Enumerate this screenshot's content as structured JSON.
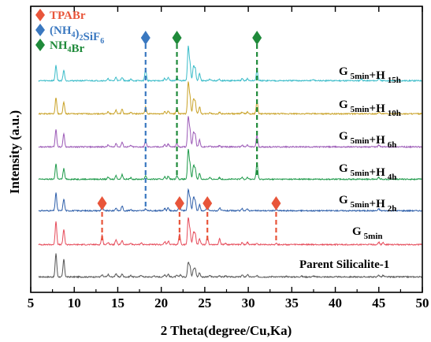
{
  "chart_data": {
    "type": "line",
    "xlabel": "2 Theta(degree/Cu,Ka)",
    "ylabel": "Intensity (a.u.)",
    "xlim": [
      5,
      50
    ],
    "x_ticks": [
      5,
      10,
      15,
      20,
      25,
      30,
      35,
      40,
      45,
      50
    ],
    "y_ticks_shown": false,
    "legend": {
      "placement": "top-left",
      "entries": [
        {
          "marker": "diamond",
          "color": "#e8553a",
          "label": "TPABr"
        },
        {
          "marker": "diamond",
          "color": "#3a78c0",
          "label_main": "(NH",
          "label_sub": "4",
          "label_tail": ")",
          "label_sub2": "2",
          "label_tail2": "SiF",
          "label_sub3": "6"
        },
        {
          "marker": "diamond",
          "color": "#1f8a3a",
          "label_main": "NH",
          "label_sub": "4",
          "label_tail": "Br"
        }
      ]
    },
    "series": [
      {
        "label_main": "Parent Silicalite-1",
        "label_sub": "",
        "label_plus": "",
        "label_sub2": "",
        "color": "#555555",
        "baseline": 0,
        "peaks": [
          [
            7.9,
            1.0
          ],
          [
            8.8,
            0.75
          ],
          [
            13.2,
            0.08
          ],
          [
            13.9,
            0.1
          ],
          [
            14.8,
            0.15
          ],
          [
            15.5,
            0.12
          ],
          [
            16.5,
            0.06
          ],
          [
            17.7,
            0.08
          ],
          [
            19.2,
            0.05
          ],
          [
            20.4,
            0.1
          ],
          [
            20.8,
            0.12
          ],
          [
            21.8,
            0.06
          ],
          [
            22.2,
            0.1
          ],
          [
            23.1,
            0.6
          ],
          [
            23.3,
            0.45
          ],
          [
            23.7,
            0.3
          ],
          [
            23.9,
            0.35
          ],
          [
            24.4,
            0.18
          ],
          [
            25.6,
            0.06
          ],
          [
            26.7,
            0.06
          ],
          [
            27.4,
            0.05
          ],
          [
            29.3,
            0.08
          ],
          [
            29.9,
            0.1
          ],
          [
            31.0,
            0.04
          ],
          [
            32.8,
            0.03
          ],
          [
            34.4,
            0.03
          ],
          [
            36.1,
            0.04
          ],
          [
            37.5,
            0.04
          ],
          [
            45.0,
            0.08
          ],
          [
            45.5,
            0.06
          ]
        ]
      },
      {
        "label_main": "G",
        "label_sub": "5min",
        "label_plus": "",
        "label_sub2": "",
        "color": "#e64b5a",
        "baseline": 1,
        "peaks": [
          [
            7.9,
            1.0
          ],
          [
            8.8,
            0.65
          ],
          [
            13.2,
            0.4
          ],
          [
            13.9,
            0.1
          ],
          [
            14.8,
            0.2
          ],
          [
            15.5,
            0.18
          ],
          [
            16.5,
            0.06
          ],
          [
            17.7,
            0.08
          ],
          [
            20.4,
            0.12
          ],
          [
            20.8,
            0.15
          ],
          [
            22.1,
            0.45
          ],
          [
            23.1,
            1.1
          ],
          [
            23.3,
            0.6
          ],
          [
            23.7,
            0.5
          ],
          [
            23.9,
            0.45
          ],
          [
            24.4,
            0.25
          ],
          [
            25.3,
            0.35
          ],
          [
            26.7,
            0.25
          ],
          [
            27.4,
            0.06
          ],
          [
            29.3,
            0.1
          ],
          [
            29.9,
            0.1
          ],
          [
            31.0,
            0.05
          ],
          [
            33.2,
            0.06
          ],
          [
            45.0,
            0.1
          ],
          [
            45.5,
            0.08
          ]
        ]
      },
      {
        "label_main": "G",
        "label_sub": "5min",
        "label_plus": "+H",
        "label_sub2": "2h",
        "color": "#2e5faa",
        "baseline": 2,
        "peaks": [
          [
            7.9,
            0.75
          ],
          [
            8.8,
            0.5
          ],
          [
            13.2,
            0.2
          ],
          [
            14.8,
            0.12
          ],
          [
            15.5,
            0.2
          ],
          [
            16.5,
            0.06
          ],
          [
            18.2,
            0.08
          ],
          [
            20.4,
            0.1
          ],
          [
            20.8,
            0.12
          ],
          [
            22.1,
            0.3
          ],
          [
            23.1,
            0.85
          ],
          [
            23.3,
            0.5
          ],
          [
            23.7,
            0.55
          ],
          [
            23.9,
            0.4
          ],
          [
            24.4,
            0.25
          ],
          [
            25.3,
            0.2
          ],
          [
            26.7,
            0.12
          ],
          [
            29.3,
            0.08
          ],
          [
            29.9,
            0.08
          ],
          [
            33.2,
            0.05
          ],
          [
            45.0,
            0.08
          ]
        ]
      },
      {
        "label_main": "G",
        "label_sub": "5min",
        "label_plus": "+H",
        "label_sub2": "4h",
        "color": "#1e9a4a",
        "baseline": 3,
        "peaks": [
          [
            7.9,
            0.65
          ],
          [
            8.8,
            0.45
          ],
          [
            13.9,
            0.08
          ],
          [
            14.8,
            0.15
          ],
          [
            15.5,
            0.2
          ],
          [
            16.5,
            0.06
          ],
          [
            18.2,
            0.15
          ],
          [
            20.4,
            0.1
          ],
          [
            20.8,
            0.12
          ],
          [
            21.8,
            0.15
          ],
          [
            23.1,
            1.2
          ],
          [
            23.3,
            0.6
          ],
          [
            23.7,
            0.55
          ],
          [
            23.9,
            0.45
          ],
          [
            24.4,
            0.25
          ],
          [
            25.6,
            0.06
          ],
          [
            26.7,
            0.06
          ],
          [
            29.3,
            0.08
          ],
          [
            29.9,
            0.08
          ],
          [
            31.0,
            0.7
          ],
          [
            45.0,
            0.08
          ]
        ]
      },
      {
        "label_main": "G",
        "label_sub": "5min",
        "label_plus": "+H",
        "label_sub2": "6h",
        "color": "#9b59b6",
        "baseline": 4,
        "peaks": [
          [
            7.9,
            0.75
          ],
          [
            8.8,
            0.55
          ],
          [
            13.9,
            0.08
          ],
          [
            14.8,
            0.15
          ],
          [
            15.5,
            0.2
          ],
          [
            16.5,
            0.06
          ],
          [
            18.2,
            0.25
          ],
          [
            20.4,
            0.1
          ],
          [
            20.8,
            0.12
          ],
          [
            21.8,
            0.15
          ],
          [
            23.1,
            1.25
          ],
          [
            23.3,
            0.7
          ],
          [
            23.7,
            0.6
          ],
          [
            23.9,
            0.5
          ],
          [
            24.4,
            0.3
          ],
          [
            25.6,
            0.06
          ],
          [
            26.7,
            0.06
          ],
          [
            29.3,
            0.08
          ],
          [
            29.9,
            0.08
          ],
          [
            31.0,
            0.5
          ],
          [
            45.0,
            0.08
          ]
        ]
      },
      {
        "label_main": "G",
        "label_sub": "5min",
        "label_plus": "+H",
        "label_sub2": "10h",
        "color": "#c9a227",
        "baseline": 5,
        "peaks": [
          [
            7.9,
            0.7
          ],
          [
            8.8,
            0.5
          ],
          [
            13.9,
            0.08
          ],
          [
            14.8,
            0.15
          ],
          [
            15.5,
            0.2
          ],
          [
            16.5,
            0.06
          ],
          [
            18.2,
            0.3
          ],
          [
            20.4,
            0.1
          ],
          [
            20.8,
            0.12
          ],
          [
            21.8,
            0.25
          ],
          [
            23.1,
            1.3
          ],
          [
            23.3,
            0.7
          ],
          [
            23.7,
            0.6
          ],
          [
            23.9,
            0.5
          ],
          [
            24.4,
            0.3
          ],
          [
            25.6,
            0.06
          ],
          [
            26.7,
            0.06
          ],
          [
            29.3,
            0.08
          ],
          [
            29.9,
            0.08
          ],
          [
            31.0,
            0.55
          ],
          [
            45.0,
            0.08
          ]
        ]
      },
      {
        "label_main": "G",
        "label_sub": "5min",
        "label_plus": "+H",
        "label_sub2": "15h",
        "color": "#3bbcc9",
        "baseline": 6,
        "peaks": [
          [
            7.9,
            0.65
          ],
          [
            8.8,
            0.45
          ],
          [
            13.9,
            0.08
          ],
          [
            14.8,
            0.15
          ],
          [
            15.5,
            0.15
          ],
          [
            16.5,
            0.06
          ],
          [
            18.2,
            0.5
          ],
          [
            20.4,
            0.1
          ],
          [
            20.8,
            0.12
          ],
          [
            21.8,
            0.15
          ],
          [
            23.1,
            1.4
          ],
          [
            23.3,
            0.7
          ],
          [
            23.7,
            0.6
          ],
          [
            23.9,
            0.5
          ],
          [
            24.4,
            0.3
          ],
          [
            25.6,
            0.06
          ],
          [
            26.7,
            0.06
          ],
          [
            29.3,
            0.08
          ],
          [
            29.9,
            0.08
          ],
          [
            31.0,
            0.45
          ],
          [
            37.5,
            0.05
          ],
          [
            43.0,
            0.08
          ],
          [
            45.0,
            0.1
          ]
        ]
      }
    ],
    "markers": [
      {
        "compound": "TPABr",
        "color": "#e8553a",
        "x": 13.2,
        "from_series": 1,
        "to_series": 2
      },
      {
        "compound": "TPABr",
        "color": "#e8553a",
        "x": 22.1,
        "from_series": 1,
        "to_series": 2
      },
      {
        "compound": "TPABr",
        "color": "#e8553a",
        "x": 25.3,
        "from_series": 1,
        "to_series": 2
      },
      {
        "compound": "TPABr",
        "color": "#e8553a",
        "x": 33.2,
        "from_series": 1,
        "to_series": 2
      },
      {
        "compound": "(NH4)2SiF6",
        "color": "#3a78c0",
        "x": 18.2,
        "from_series": 2,
        "to_series": 7
      },
      {
        "compound": "NH4Br",
        "color": "#1f8a3a",
        "x": 21.8,
        "from_series": 3,
        "to_series": 7
      },
      {
        "compound": "NH4Br",
        "color": "#1f8a3a",
        "x": 31.0,
        "from_series": 3,
        "to_series": 7
      }
    ]
  }
}
